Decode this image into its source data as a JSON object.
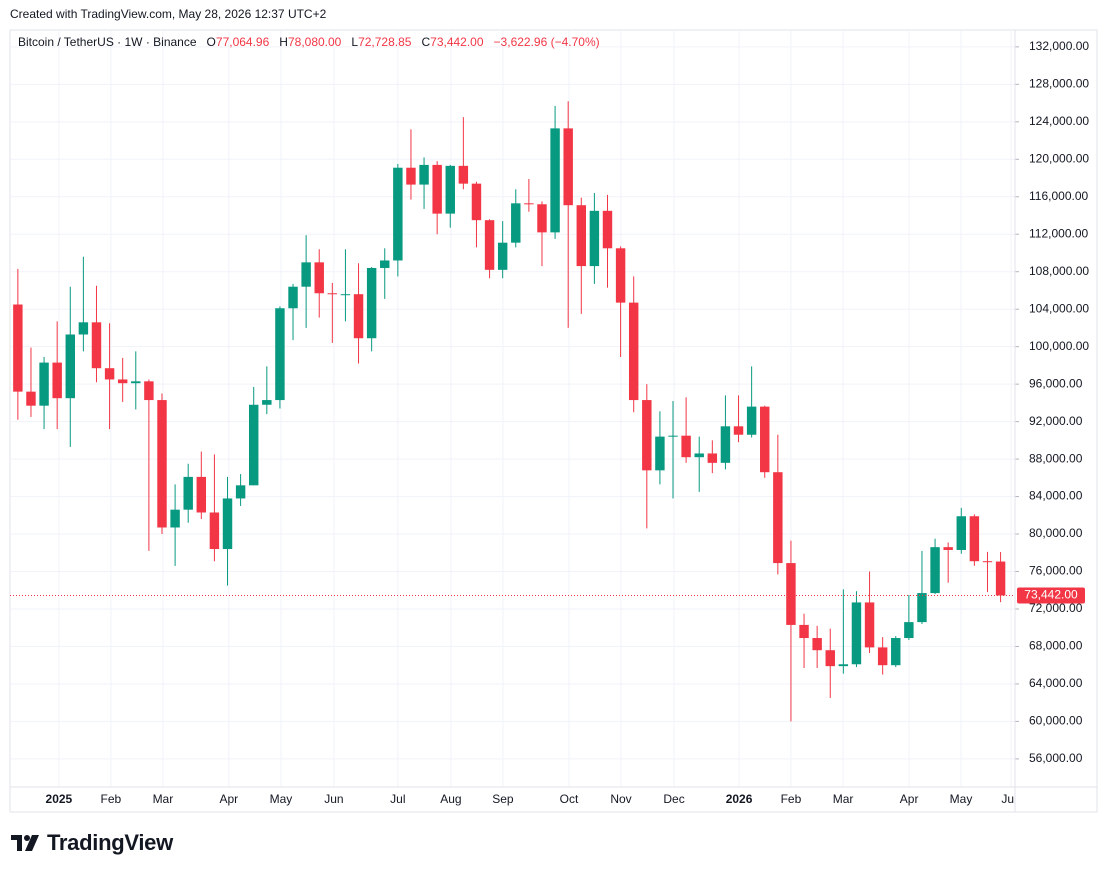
{
  "note": "Created with TradingView.com, May 28, 2026 12:37 UTC+2",
  "logo": "TradingView",
  "chart_data": {
    "type": "candlestick",
    "title": "Bitcoin / TetherUS · 1W · Binance",
    "ohlc_letters": {
      "open": "O",
      "high": "H",
      "low": "L",
      "close": "C"
    },
    "ohlc_labels": {
      "open": "77,064.96",
      "high": "78,080.00",
      "low": "72,728.85",
      "close": "73,442.00",
      "change": "−3,622.96",
      "change_pct": "(−4.70%)"
    },
    "last_price_label": "73,442.00",
    "up_color": "#089981",
    "down_color": "#f23645",
    "open": [
      104500,
      95200,
      93700,
      98300,
      94500,
      101300,
      102600,
      97700,
      96500,
      96100,
      96300,
      94300,
      80700,
      82600,
      86100,
      82300,
      78400,
      83800,
      85200,
      93800,
      94300,
      104100,
      106400,
      109000,
      105700,
      105600,
      105600,
      100900,
      108400,
      109200,
      119100,
      117300,
      119400,
      114200,
      119300,
      117400,
      113500,
      108200,
      111100,
      115300,
      115200,
      112200,
      123300,
      115100,
      108600,
      114500,
      110500,
      104700,
      94300,
      86800,
      90400,
      90500,
      88200,
      88600,
      87600,
      91500,
      90600,
      93600,
      86600,
      76900,
      70300,
      68900,
      67600,
      65900,
      66100,
      72700,
      67900,
      66000,
      68900,
      70600,
      73700,
      78600,
      78300,
      81900,
      77100,
      77064.96
    ],
    "high": [
      108300,
      99900,
      98900,
      102700,
      106400,
      109600,
      106500,
      102500,
      98800,
      99500,
      96500,
      95000,
      85300,
      87500,
      88800,
      88500,
      86100,
      86400,
      95700,
      97900,
      104300,
      106700,
      111900,
      110400,
      106800,
      110400,
      108900,
      108500,
      110500,
      119500,
      123200,
      120200,
      119800,
      119400,
      124500,
      117600,
      113600,
      113400,
      116800,
      117900,
      115500,
      125700,
      126200,
      115900,
      116400,
      116200,
      110700,
      107500,
      96000,
      93100,
      94200,
      94600,
      90400,
      90000,
      94800,
      94800,
      97900,
      93700,
      90600,
      79300,
      71500,
      70200,
      69900,
      74100,
      73900,
      76000,
      69000,
      69100,
      73500,
      78200,
      79500,
      79100,
      82800,
      82100,
      78100,
      78080
    ],
    "low": [
      92200,
      92500,
      91200,
      91200,
      89300,
      99500,
      96200,
      91200,
      94100,
      93300,
      78200,
      80000,
      76600,
      81200,
      81600,
      77100,
      74500,
      83000,
      85200,
      92800,
      93400,
      100700,
      102000,
      103100,
      100400,
      102700,
      98200,
      99500,
      105100,
      107500,
      115700,
      114700,
      112000,
      112700,
      116800,
      110600,
      107300,
      107300,
      110600,
      114400,
      108600,
      111500,
      102000,
      103500,
      106700,
      106300,
      98900,
      93000,
      80600,
      85300,
      83800,
      87600,
      84500,
      86500,
      86900,
      89800,
      90300,
      86000,
      75700,
      60000,
      65700,
      65700,
      62500,
      65100,
      65800,
      67300,
      65000,
      65800,
      68700,
      70400,
      73600,
      74800,
      77900,
      76600,
      73800,
      72728.85
    ],
    "close": [
      95200,
      93700,
      98300,
      94500,
      101300,
      102600,
      97700,
      96500,
      96100,
      96300,
      94300,
      80700,
      82600,
      86100,
      82300,
      78400,
      83800,
      85200,
      93800,
      94300,
      104100,
      106400,
      109000,
      105700,
      105600,
      105600,
      100900,
      108400,
      109200,
      119100,
      117300,
      119400,
      114200,
      119300,
      117400,
      113500,
      108200,
      111100,
      115300,
      115200,
      112200,
      123300,
      115100,
      108600,
      114500,
      110500,
      104700,
      94300,
      86800,
      90400,
      90500,
      88200,
      88600,
      87600,
      91500,
      90600,
      93600,
      86600,
      76900,
      70300,
      68900,
      67600,
      65900,
      66100,
      72700,
      67900,
      66000,
      68900,
      70600,
      73700,
      78600,
      78300,
      81900,
      77100,
      77064.96,
      73442
    ],
    "xlim": [
      -0.6,
      76.1
    ],
    "xticks": [
      {
        "value": 3.13,
        "label": "2025"
      },
      {
        "value": 7.1,
        "label": "Feb"
      },
      {
        "value": 11.07,
        "label": "Mar"
      },
      {
        "value": 16.1,
        "label": "Apr"
      },
      {
        "value": 20.08,
        "label": "May"
      },
      {
        "value": 24.12,
        "label": "Jun"
      },
      {
        "value": 29.0,
        "label": "Jul"
      },
      {
        "value": 33.05,
        "label": "Aug"
      },
      {
        "value": 37.02,
        "label": "Sep"
      },
      {
        "value": 42.06,
        "label": "Oct"
      },
      {
        "value": 46.03,
        "label": "Nov"
      },
      {
        "value": 50.08,
        "label": "Dec"
      },
      {
        "value": 55.04,
        "label": "2026"
      },
      {
        "value": 59.0,
        "label": "Feb"
      },
      {
        "value": 62.98,
        "label": "Mar"
      },
      {
        "value": 68.02,
        "label": "Apr"
      },
      {
        "value": 71.98,
        "label": "May"
      },
      {
        "value": 75.8,
        "label": "Jun"
      }
    ],
    "ylim": [
      53000,
      133800
    ],
    "yticks": [
      {
        "value": 56000,
        "label": "56,000.00"
      },
      {
        "value": 60000,
        "label": "60,000.00"
      },
      {
        "value": 64000,
        "label": "64,000.00"
      },
      {
        "value": 68000,
        "label": "68,000.00"
      },
      {
        "value": 72000,
        "label": "72,000.00"
      },
      {
        "value": 76000,
        "label": "76,000.00"
      },
      {
        "value": 80000,
        "label": "80,000.00"
      },
      {
        "value": 84000,
        "label": "84,000.00"
      },
      {
        "value": 88000,
        "label": "88,000.00"
      },
      {
        "value": 92000,
        "label": "92,000.00"
      },
      {
        "value": 96000,
        "label": "96,000.00"
      },
      {
        "value": 100000,
        "label": "100,000.00"
      },
      {
        "value": 104000,
        "label": "104,000.00"
      },
      {
        "value": 108000,
        "label": "108,000.00"
      },
      {
        "value": 112000,
        "label": "112,000.00"
      },
      {
        "value": 116000,
        "label": "116,000.00"
      },
      {
        "value": 120000,
        "label": "120,000.00"
      },
      {
        "value": 124000,
        "label": "124,000.00"
      },
      {
        "value": 128000,
        "label": "128,000.00"
      },
      {
        "value": 132000,
        "label": "132,000.00"
      }
    ],
    "grid": true
  }
}
